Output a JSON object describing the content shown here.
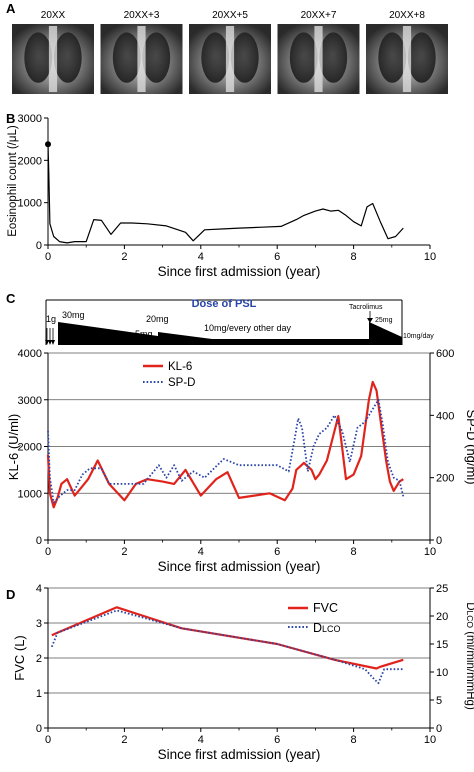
{
  "panel_a": {
    "letter": "A",
    "xray_labels": [
      "20XX",
      "20XX+3",
      "20XX+5",
      "20XX+7",
      "20XX+8"
    ]
  },
  "chart_data": [
    {
      "panel": "B",
      "type": "line",
      "ylabel": "Eosinophil count (/μL)",
      "xlabel": "Since first admission (year)",
      "xlim": [
        0,
        10
      ],
      "ylim": [
        0,
        3000
      ],
      "xticks": [
        0,
        2,
        4,
        6,
        8,
        10
      ],
      "yticks": [
        0,
        1000,
        2000,
        3000
      ],
      "series": [
        {
          "color": "#000000",
          "style": "solid",
          "x": [
            0,
            0.02,
            0.05,
            0.15,
            0.3,
            0.5,
            0.7,
            1.0,
            1.2,
            1.4,
            1.65,
            1.9,
            2.2,
            2.6,
            3.1,
            3.6,
            3.8,
            4.1,
            4.6,
            5.0,
            5.6,
            6.1,
            6.5,
            6.7,
            7.0,
            7.2,
            7.4,
            7.6,
            7.8,
            8.0,
            8.2,
            8.35,
            8.5,
            8.7,
            8.9,
            9.1,
            9.3
          ],
          "values": [
            2380,
            1700,
            500,
            200,
            80,
            50,
            80,
            80,
            600,
            580,
            250,
            520,
            520,
            500,
            450,
            300,
            100,
            360,
            380,
            400,
            420,
            440,
            600,
            700,
            800,
            850,
            800,
            820,
            700,
            550,
            450,
            900,
            980,
            550,
            150,
            200,
            400
          ]
        }
      ],
      "markers": [
        {
          "x": 0,
          "y": 2380
        }
      ]
    },
    {
      "panel": "C",
      "type": "line",
      "ylabel": "KL-6 (U/ml)",
      "ylabel_right": "SP-D (ng/ml)",
      "xlabel": "Since first admission (year)",
      "xlim": [
        0,
        10
      ],
      "ylim": [
        0,
        4000
      ],
      "ylim_right": [
        0,
        600
      ],
      "xticks": [
        0,
        2,
        4,
        6,
        8,
        10
      ],
      "yticks": [
        0,
        1000,
        2000,
        3000,
        4000
      ],
      "yticks_right": [
        0,
        200,
        400,
        600
      ],
      "grid": "horizontal",
      "legend": "top-left",
      "series": [
        {
          "name": "KL-6",
          "color": "#e0241c",
          "style": "solid",
          "axis": "left",
          "x": [
            0,
            0.05,
            0.15,
            0.25,
            0.35,
            0.5,
            0.7,
            0.85,
            1.05,
            1.3,
            1.6,
            2.0,
            2.3,
            2.6,
            3.0,
            3.3,
            3.6,
            4.0,
            4.4,
            4.7,
            5.0,
            5.4,
            5.8,
            6.2,
            6.4,
            6.5,
            6.7,
            6.9,
            7.0,
            7.1,
            7.3,
            7.6,
            7.8,
            8.0,
            8.2,
            8.4,
            8.5,
            8.6,
            8.7,
            8.85,
            8.95,
            9.05,
            9.2,
            9.3
          ],
          "values": [
            1820,
            1000,
            700,
            900,
            1200,
            1300,
            950,
            1100,
            1300,
            1700,
            1200,
            850,
            1200,
            1300,
            1250,
            1200,
            1500,
            950,
            1300,
            1450,
            900,
            950,
            1000,
            850,
            1100,
            1500,
            1650,
            1500,
            1300,
            1400,
            1700,
            2650,
            1300,
            1400,
            1800,
            3000,
            3380,
            3200,
            2600,
            1700,
            1250,
            1050,
            1250,
            1300
          ]
        },
        {
          "name": "SP-D",
          "color": "#2a44a8",
          "style": "dotted",
          "axis": "right",
          "x": [
            0,
            0.05,
            0.15,
            0.3,
            0.5,
            0.7,
            0.9,
            1.1,
            1.4,
            1.6,
            2.0,
            2.5,
            2.9,
            3.1,
            3.3,
            3.5,
            3.8,
            4.1,
            4.6,
            5.0,
            5.5,
            6.0,
            6.3,
            6.45,
            6.55,
            6.65,
            6.8,
            6.95,
            7.1,
            7.3,
            7.5,
            7.7,
            7.9,
            8.1,
            8.3,
            8.5,
            8.65,
            8.75,
            8.9,
            9.05,
            9.2,
            9.3
          ],
          "values": [
            350,
            200,
            120,
            140,
            160,
            160,
            210,
            230,
            230,
            180,
            180,
            180,
            240,
            200,
            240,
            190,
            220,
            200,
            260,
            240,
            240,
            240,
            220,
            320,
            390,
            360,
            220,
            300,
            340,
            360,
            400,
            350,
            250,
            360,
            380,
            420,
            450,
            380,
            250,
            200,
            190,
            140
          ]
        }
      ]
    },
    {
      "panel": "D",
      "type": "line",
      "ylabel": "FVC (L)",
      "ylabel_right": "DLCO (ml/min/mmHg)",
      "xlabel": "Since first admission (year)",
      "xlim": [
        0,
        10
      ],
      "ylim": [
        0,
        4
      ],
      "ylim_right": [
        0,
        25
      ],
      "xticks": [
        0,
        2,
        4,
        6,
        8,
        10
      ],
      "yticks": [
        0,
        1,
        2,
        3,
        4
      ],
      "yticks_right": [
        0,
        5,
        10,
        15,
        20,
        25
      ],
      "grid": "horizontal",
      "legend": "top-right",
      "series": [
        {
          "name": "FVC",
          "color": "#e0241c",
          "style": "solid",
          "axis": "left",
          "x": [
            0.1,
            0.2,
            1.8,
            3.5,
            6.0,
            7.5,
            8.6,
            8.7,
            9.3
          ],
          "values": [
            2.65,
            2.7,
            3.45,
            2.85,
            2.4,
            1.95,
            1.7,
            1.75,
            1.95
          ]
        },
        {
          "name": "DLCO",
          "color": "#2a44a8",
          "style": "dotted",
          "axis": "right",
          "x": [
            0.1,
            0.25,
            1.8,
            3.5,
            6.0,
            7.5,
            8.3,
            8.5,
            8.65,
            8.8,
            9.3
          ],
          "values": [
            14.5,
            17.0,
            21.0,
            17.8,
            15.0,
            12.2,
            10.5,
            9.0,
            8.0,
            10.5,
            10.5
          ]
        }
      ]
    }
  ],
  "panel_b": {
    "letter": "B",
    "ytick_labels": [
      "0",
      "1000",
      "2000",
      "3000"
    ],
    "xtick_labels": [
      "0",
      "2",
      "4",
      "6",
      "8",
      "10"
    ]
  },
  "panel_c": {
    "letter": "C",
    "psl_title": "Dose of PSL",
    "dose_labels": {
      "pulse": "1g",
      "d30": "30mg",
      "d20": "20mg",
      "d5": "5mg",
      "d10": "10mg/every other day",
      "tac": "Tacrolimus",
      "d25": "25mg",
      "d10day": "10mg/day"
    },
    "ytick_labels": [
      "0",
      "1000",
      "2000",
      "3000",
      "4000"
    ],
    "ytick_labels_right": [
      "0",
      "200",
      "400",
      "600"
    ],
    "xtick_labels": [
      "0",
      "2",
      "4",
      "6",
      "8",
      "10"
    ],
    "legend": [
      "KL-6",
      "SP-D"
    ]
  },
  "panel_d": {
    "letter": "D",
    "ytick_labels": [
      "0",
      "1",
      "2",
      "3",
      "4"
    ],
    "ytick_labels_right": [
      "0",
      "5",
      "10",
      "15",
      "20",
      "25"
    ],
    "xtick_labels": [
      "0",
      "2",
      "4",
      "6",
      "8",
      "10"
    ],
    "legend_fvc": "FVC",
    "legend_dlco_main": "D",
    "legend_dlco_sub": "LCO",
    "ylabel_left": "FVC (L)",
    "ylabel_right_main": "D",
    "ylabel_right_sub": "LCO",
    "ylabel_right_rest": " (ml/min/mmHg)"
  },
  "colors": {
    "red": "#e0241c",
    "blue": "#2a44a8",
    "black": "#000000"
  }
}
